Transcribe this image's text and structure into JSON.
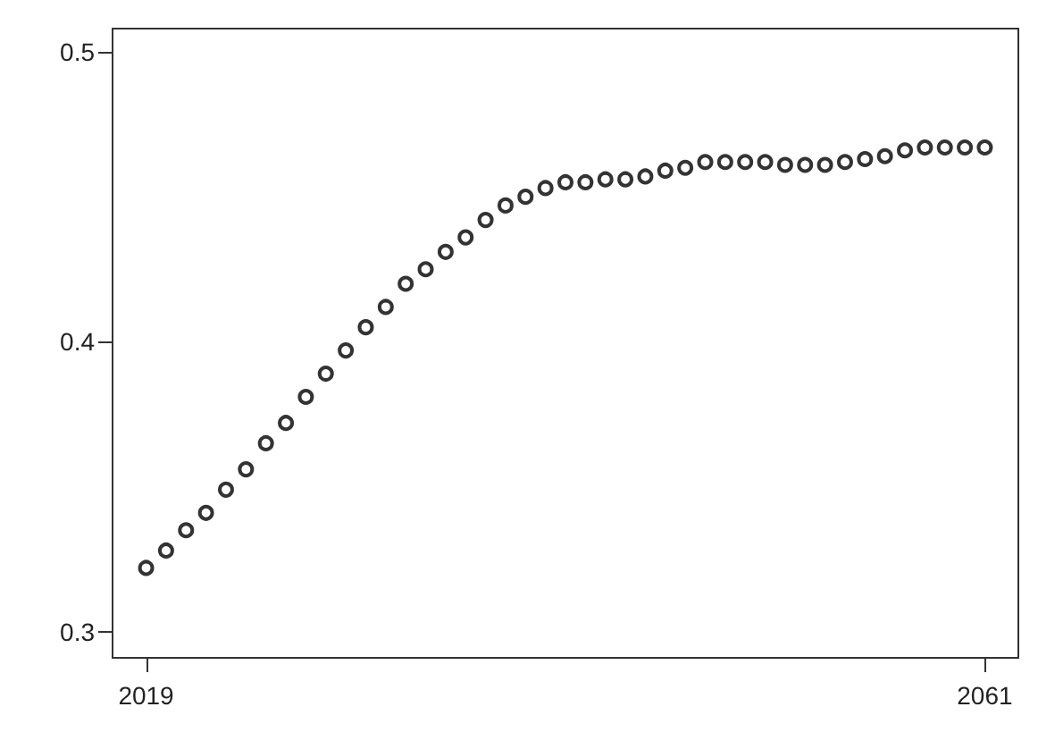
{
  "chart_data": {
    "type": "scatter",
    "x": [
      2019,
      2020,
      2021,
      2022,
      2023,
      2024,
      2025,
      2026,
      2027,
      2028,
      2029,
      2030,
      2031,
      2032,
      2033,
      2034,
      2035,
      2036,
      2037,
      2038,
      2039,
      2040,
      2041,
      2042,
      2043,
      2044,
      2045,
      2046,
      2047,
      2048,
      2049,
      2050,
      2051,
      2052,
      2053,
      2054,
      2055,
      2056,
      2057,
      2058,
      2059,
      2060,
      2061
    ],
    "values": [
      0.322,
      0.328,
      0.335,
      0.341,
      0.349,
      0.356,
      0.365,
      0.372,
      0.381,
      0.389,
      0.397,
      0.405,
      0.412,
      0.42,
      0.425,
      0.431,
      0.436,
      0.442,
      0.447,
      0.45,
      0.453,
      0.455,
      0.455,
      0.456,
      0.456,
      0.457,
      0.459,
      0.46,
      0.462,
      0.462,
      0.462,
      0.462,
      0.461,
      0.461,
      0.461,
      0.462,
      0.463,
      0.464,
      0.466,
      0.467,
      0.467,
      0.467,
      0.467
    ],
    "color": "#000000",
    "marker": "circle",
    "grid": false,
    "xlim": [
      2017.32,
      2062.68
    ],
    "xticks": [
      2019,
      2061
    ],
    "ylim": [
      0.291,
      0.508
    ],
    "yticks": [
      0.3,
      0.4,
      0.5
    ]
  }
}
